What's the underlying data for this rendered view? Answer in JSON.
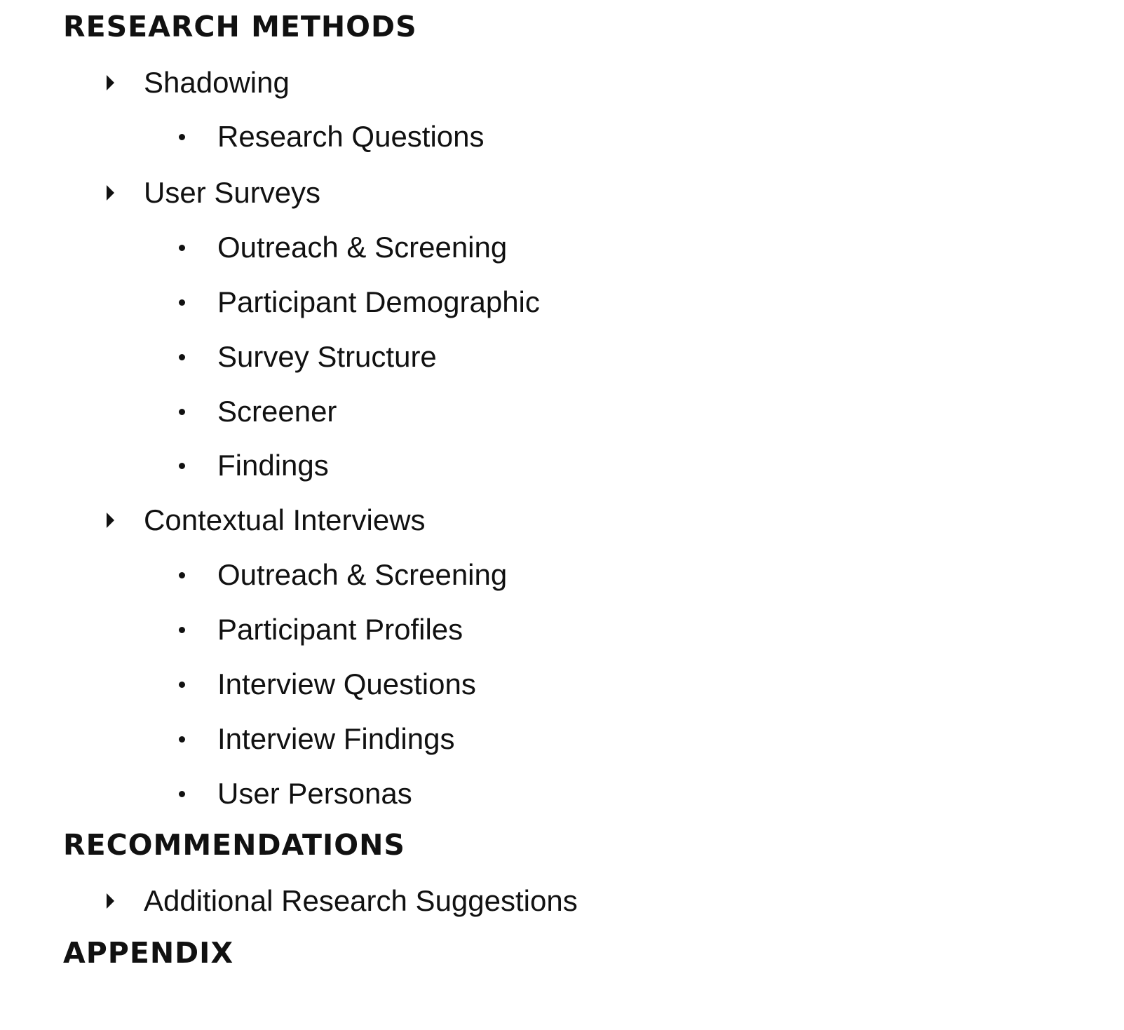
{
  "sections": [
    {
      "title": "RESEARCH METHODS",
      "items": [
        {
          "label": "Shadowing",
          "children": [
            "Research Questions"
          ]
        },
        {
          "label": "User Surveys",
          "children": [
            "Outreach & Screening",
            "Participant Demographic",
            "Survey Structure",
            "Screener",
            "Findings"
          ]
        },
        {
          "label": "Contextual Interviews",
          "children": [
            "Outreach & Screening",
            "Participant Profiles",
            "Interview Questions",
            "Interview Findings",
            "User Personas"
          ]
        }
      ]
    },
    {
      "title": "RECOMMENDATIONS",
      "items": [
        {
          "label": "Additional Research Suggestions",
          "children": []
        }
      ]
    },
    {
      "title": "APPENDIX",
      "items": []
    }
  ],
  "icons": {
    "level1": "caret-right-icon",
    "level2": "bullet-icon"
  },
  "colors": {
    "text": "#111111",
    "background": "#ffffff"
  }
}
